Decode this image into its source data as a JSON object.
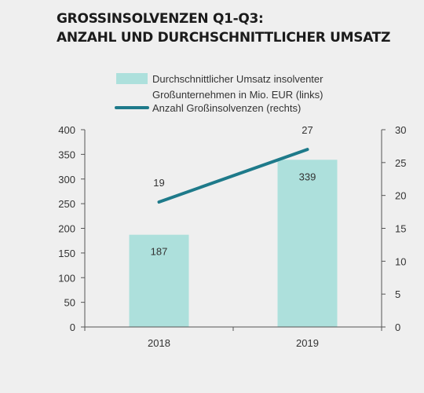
{
  "title": {
    "line1": "GROSSINSOLVENZEN Q1-Q3:",
    "line2": "ANZAHL UND DURCHSCHNITTLICHER UMSATZ"
  },
  "colors": {
    "bar": "#ade0dc",
    "line": "#1e7a8a",
    "axis": "#555555",
    "background": "#efefef"
  },
  "chart_data": {
    "type": "bar",
    "categories": [
      "2018",
      "2019"
    ],
    "series": [
      {
        "name": "Durchschnittlicher Umsatz insolventer Großunternehmen in Mio. EUR (links)",
        "name_lines": [
          "Durchschnittlicher Umsatz insolventer",
          "Großunternehmen in Mio. EUR (links)"
        ],
        "type": "bar",
        "axis": "left",
        "values": [
          187,
          339
        ],
        "labels": [
          "187",
          "339"
        ]
      },
      {
        "name": "Anzahl Großinsolvenzen (rechts)",
        "type": "line",
        "axis": "right",
        "values": [
          19,
          27
        ],
        "labels": [
          "19",
          "27"
        ]
      }
    ],
    "ylim_left": [
      0,
      400
    ],
    "yticks_left": [
      "0",
      "50",
      "100",
      "150",
      "200",
      "250",
      "300",
      "350",
      "400"
    ],
    "ylim_right": [
      0,
      30
    ],
    "yticks_right": [
      "0",
      "5",
      "10",
      "15",
      "20",
      "25",
      "30"
    ],
    "legend_position": "top",
    "grid": false
  }
}
